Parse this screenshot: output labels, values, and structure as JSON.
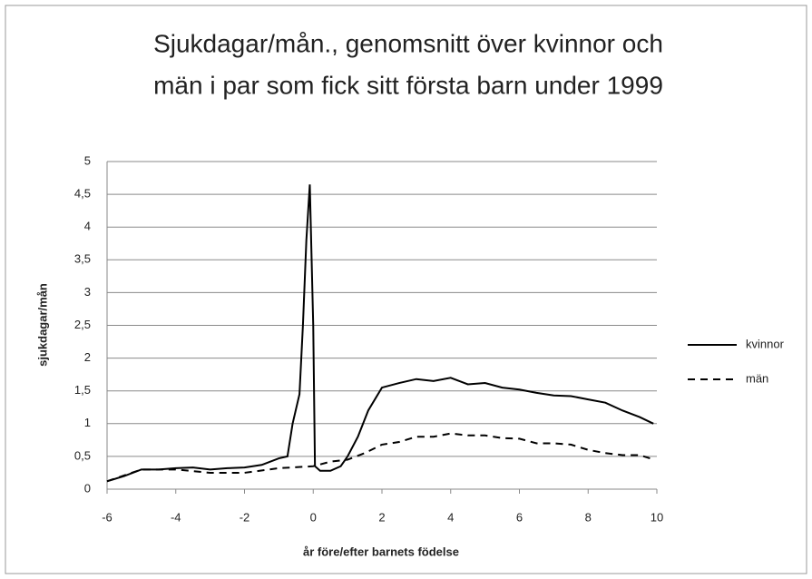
{
  "chart_data": {
    "type": "line",
    "title": [
      "Sjukdagar/mån., genomsnitt över kvinnor och",
      "män i par som fick sitt första barn under 1999"
    ],
    "x_label": "år före/efter barnets födelse",
    "y_label": "sjukdagar/mån",
    "xlim": [
      -6,
      10
    ],
    "xticks": [
      -6,
      -4,
      -2,
      0,
      2,
      4,
      6,
      8,
      10
    ],
    "ylim": [
      0,
      5
    ],
    "yticks": [
      0,
      {
        "value": 0.5,
        "label": "0,5"
      },
      1,
      {
        "value": 1.5,
        "label": "1,5"
      },
      2,
      {
        "value": 2.5,
        "label": "2,5"
      },
      3,
      {
        "value": 3.5,
        "label": "3,5"
      },
      4,
      {
        "value": 4.5,
        "label": "4,5"
      },
      5
    ],
    "grid": true,
    "legend": "right",
    "series": [
      {
        "name": "kvinnor",
        "color": "#000000",
        "dash": "solid",
        "x": [
          -6,
          -5.5,
          -5,
          -4.5,
          -4,
          -3.5,
          -3,
          -2.5,
          -2,
          -1.5,
          -1,
          -0.75,
          -0.6,
          -0.4,
          -0.3,
          -0.2,
          -0.1,
          0,
          0.05,
          0.2,
          0.5,
          0.8,
          1,
          1.3,
          1.6,
          2,
          2.5,
          3,
          3.5,
          4,
          4.5,
          5,
          5.5,
          6,
          6.5,
          7,
          7.5,
          8,
          8.5,
          9,
          9.5,
          9.9
        ],
        "values": [
          0.12,
          0.2,
          0.3,
          0.3,
          0.32,
          0.33,
          0.3,
          0.32,
          0.33,
          0.37,
          0.47,
          0.5,
          1.0,
          1.45,
          2.5,
          3.8,
          4.65,
          2.5,
          0.35,
          0.28,
          0.28,
          0.35,
          0.5,
          0.8,
          1.2,
          1.55,
          1.62,
          1.68,
          1.65,
          1.7,
          1.6,
          1.62,
          1.55,
          1.52,
          1.47,
          1.43,
          1.42,
          1.37,
          1.32,
          1.2,
          1.1,
          1.0
        ]
      },
      {
        "name": "män",
        "color": "#000000",
        "dash": "dashed",
        "x": [
          -6,
          -5,
          -4,
          -3,
          -2,
          -1,
          0,
          0.5,
          1,
          1.5,
          2,
          2.5,
          3,
          3.5,
          4,
          4.5,
          5,
          5.5,
          6,
          6.5,
          7,
          7.5,
          8,
          8.5,
          9,
          9.5,
          9.8
        ],
        "values": [
          0.12,
          0.3,
          0.3,
          0.25,
          0.25,
          0.32,
          0.35,
          0.42,
          0.45,
          0.55,
          0.68,
          0.72,
          0.8,
          0.8,
          0.85,
          0.82,
          0.82,
          0.78,
          0.77,
          0.7,
          0.7,
          0.68,
          0.6,
          0.55,
          0.52,
          0.52,
          0.47
        ]
      }
    ]
  }
}
